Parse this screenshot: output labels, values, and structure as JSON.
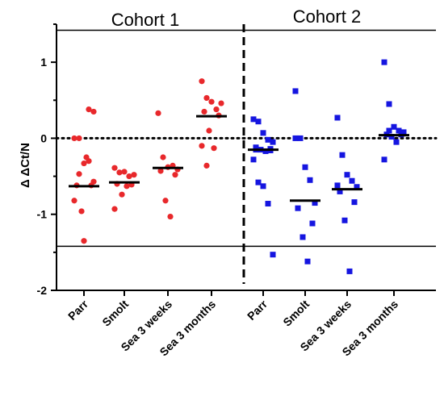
{
  "chart_data": {
    "type": "scatter",
    "ylabel": "Δ ΔCt/N",
    "ylim": [
      -2,
      1.5
    ],
    "yticks": [
      -2,
      -1,
      0,
      1
    ],
    "categories": [
      "Parr",
      "Smolt",
      "Sea 3 weeks",
      "Sea 3 months",
      "Parr",
      "Smolt",
      "Sea 3 weeks",
      "Sea 3 months"
    ],
    "group_labels": [
      "Cohort 1",
      "Cohort 2"
    ],
    "reference_lines": [
      1.42,
      -1.42
    ],
    "zero_line": 0,
    "series": [
      {
        "group": "Cohort 1",
        "color": "#e8282b",
        "marker": "circle",
        "points": [
          [
            [
              0.0,
              0.0
            ],
            [
              -0.33,
              -0.3
            ],
            [
              -0.57,
              -0.62
            ],
            [
              -0.62,
              -0.96
            ],
            [
              -0.25,
              -0.82
            ],
            [
              -0.47,
              -1.35
            ],
            [
              0.38,
              0.35
            ]
          ],
          [
            [
              -0.39,
              -0.45
            ],
            [
              -0.44,
              -0.5
            ],
            [
              -0.48,
              -0.6
            ],
            [
              -0.61,
              -0.74
            ],
            [
              -0.63,
              -0.93
            ]
          ],
          [
            [
              0.33,
              -0.25
            ],
            [
              -0.38,
              -0.36
            ],
            [
              -0.41,
              -0.43
            ],
            [
              -0.48,
              -0.82
            ],
            [
              -1.03
            ]
          ],
          [
            [
              0.75,
              0.53
            ],
            [
              0.48,
              0.38
            ],
            [
              0.46,
              0.35
            ],
            [
              0.3,
              0.1
            ],
            [
              -0.13,
              -0.1
            ],
            [
              -0.36
            ]
          ]
        ],
        "medians": [
          -0.63,
          -0.58,
          -0.39,
          0.29
        ]
      },
      {
        "group": "Cohort 2",
        "color": "#1515e0",
        "marker": "square",
        "points": [
          [
            [
              0.25,
              0.22
            ],
            [
              0.07,
              -0.02
            ],
            [
              -0.05,
              -0.12
            ],
            [
              -0.14,
              -0.15
            ],
            [
              -0.17,
              -0.28
            ],
            [
              -0.58,
              -0.63
            ],
            [
              -0.86,
              -1.53
            ],
            [
              -0.15,
              -0.16
            ]
          ],
          [
            [
              0.62,
              0.0
            ],
            [
              -0.38,
              -0.55
            ],
            [
              -0.85,
              -0.92
            ],
            [
              -1.12,
              -1.3
            ],
            [
              -1.62
            ],
            [
              0.0
            ]
          ],
          [
            [
              0.27,
              -0.22
            ],
            [
              -0.48,
              -0.56
            ],
            [
              -0.64,
              -0.7
            ],
            [
              -0.84,
              -1.08
            ],
            [
              -1.75
            ],
            [
              -0.62
            ]
          ],
          [
            [
              1.0,
              0.45
            ],
            [
              0.15,
              0.1
            ],
            [
              0.08,
              0.05
            ],
            [
              0.05,
              0.02
            ],
            [
              -0.05,
              -0.28
            ],
            [
              0.1
            ]
          ]
        ],
        "medians": [
          -0.15,
          -0.82,
          -0.67,
          0.04
        ]
      }
    ]
  }
}
